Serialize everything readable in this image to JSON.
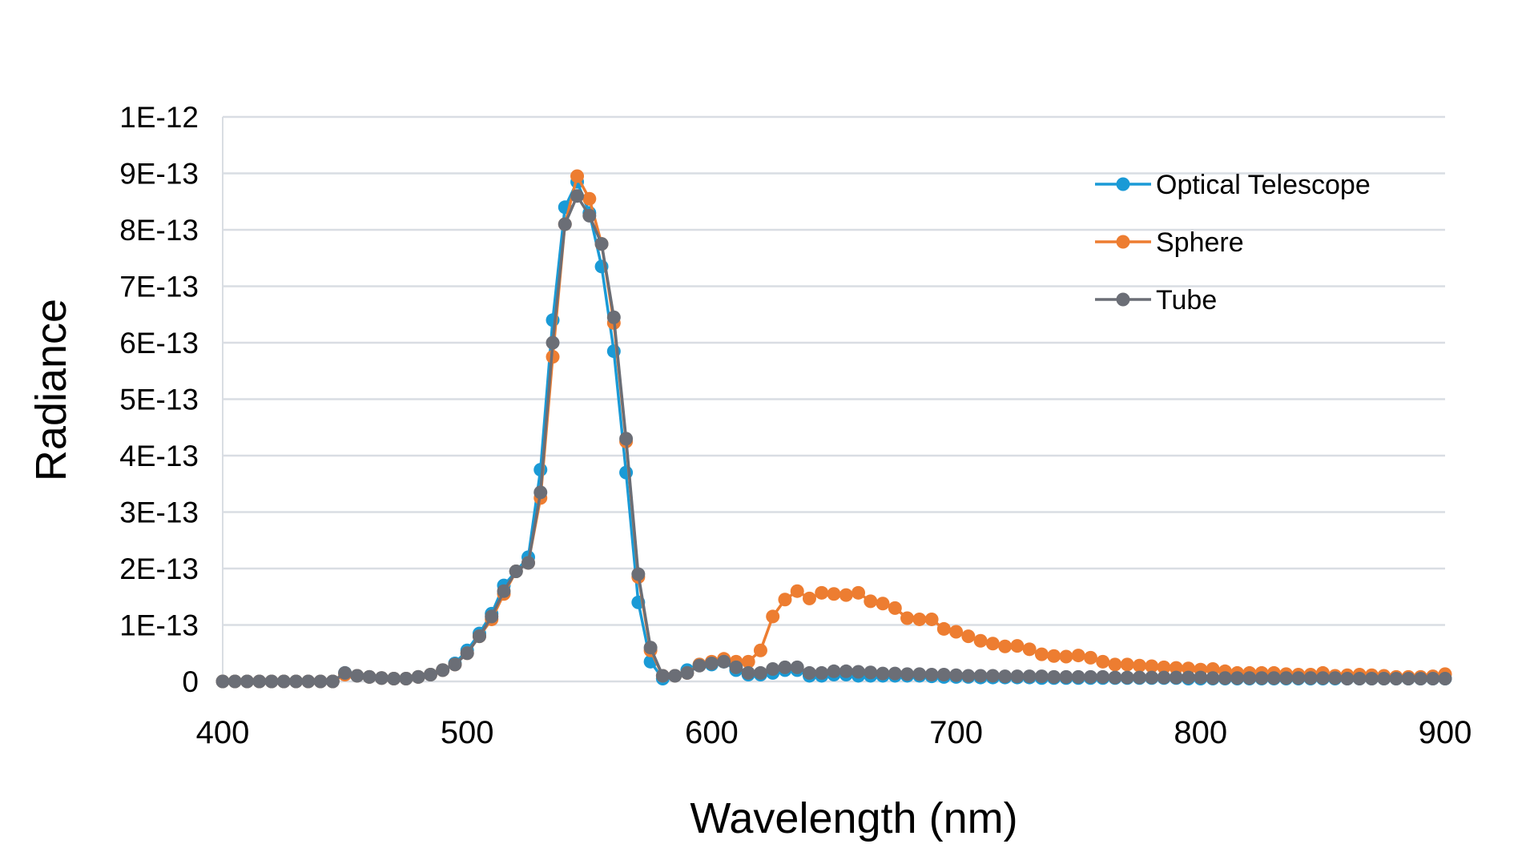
{
  "chart_data": {
    "type": "line",
    "title": "",
    "xlabel": "Wavelength (nm)",
    "ylabel": "Radiance",
    "xlim": [
      400,
      900
    ],
    "ylim": [
      0,
      1e-12
    ],
    "xticks": [
      400,
      500,
      600,
      700,
      800,
      900
    ],
    "xtick_labels": [
      "400",
      "500",
      "600",
      "700",
      "800",
      "900"
    ],
    "yticks": [
      0,
      1e-13,
      2e-13,
      3e-13,
      4e-13,
      5e-13,
      6e-13,
      7e-13,
      8e-13,
      9e-13,
      1e-12
    ],
    "ytick_labels": [
      "0",
      "1E-13",
      "2E-13",
      "3E-13",
      "4E-13",
      "5E-13",
      "6E-13",
      "7E-13",
      "8E-13",
      "9E-13",
      "1E-12"
    ],
    "grid": "horizontal",
    "legend_position": "top-right",
    "x_start": 400,
    "x_step": 5,
    "value_scale": 1e-13,
    "series": [
      {
        "name": "Optical Telescope",
        "color": "#1a9ad6",
        "values": [
          0,
          0,
          0,
          0,
          0,
          0,
          0,
          0,
          0,
          0,
          0.15,
          0.1,
          0.08,
          0.06,
          0.05,
          0.05,
          0.08,
          0.12,
          0.2,
          0.32,
          0.55,
          0.85,
          1.2,
          1.7,
          1.95,
          2.2,
          3.75,
          6.4,
          8.4,
          8.85,
          8.3,
          7.35,
          5.85,
          3.7,
          1.4,
          0.35,
          0.05,
          0.1,
          0.2,
          0.3,
          0.3,
          0.35,
          0.2,
          0.12,
          0.12,
          0.15,
          0.2,
          0.2,
          0.1,
          0.1,
          0.12,
          0.12,
          0.1,
          0.1,
          0.1,
          0.1,
          0.1,
          0.1,
          0.09,
          0.08,
          0.08,
          0.08,
          0.07,
          0.07,
          0.07,
          0.07,
          0.07,
          0.06,
          0.06,
          0.06,
          0.06,
          0.06,
          0.06,
          0.06,
          0.06,
          0.06,
          0.06,
          0.06,
          0.06,
          0.05,
          0.05,
          0.05,
          0.05,
          0.05,
          0.05,
          0.05,
          0.05,
          0.05,
          0.05,
          0.05,
          0.05,
          0.05,
          0.05,
          0.05,
          0.05,
          0.05,
          0.05,
          0.05,
          0.05,
          0.05,
          0.05
        ]
      },
      {
        "name": "Sphere",
        "color": "#ed7d31",
        "values": [
          0,
          0,
          0,
          0,
          0,
          0,
          0,
          0,
          0,
          0,
          0.12,
          0.1,
          0.08,
          0.06,
          0.05,
          0.05,
          0.08,
          0.12,
          0.2,
          0.3,
          0.5,
          0.8,
          1.1,
          1.55,
          1.95,
          2.1,
          3.25,
          5.75,
          8.1,
          8.95,
          8.55,
          7.75,
          6.35,
          4.25,
          1.85,
          0.55,
          0.1,
          0.1,
          0.15,
          0.3,
          0.35,
          0.4,
          0.35,
          0.35,
          0.55,
          1.15,
          1.45,
          1.6,
          1.47,
          1.57,
          1.55,
          1.53,
          1.57,
          1.42,
          1.38,
          1.3,
          1.12,
          1.1,
          1.1,
          0.93,
          0.88,
          0.8,
          0.72,
          0.67,
          0.62,
          0.63,
          0.57,
          0.48,
          0.45,
          0.44,
          0.46,
          0.42,
          0.35,
          0.3,
          0.3,
          0.28,
          0.27,
          0.25,
          0.24,
          0.23,
          0.21,
          0.22,
          0.18,
          0.15,
          0.15,
          0.15,
          0.15,
          0.13,
          0.12,
          0.12,
          0.15,
          0.1,
          0.11,
          0.12,
          0.11,
          0.1,
          0.08,
          0.08,
          0.08,
          0.09,
          0.13
        ]
      },
      {
        "name": "Tube",
        "color": "#6b6e76",
        "values": [
          0,
          0,
          0,
          0,
          0,
          0,
          0,
          0,
          0,
          0,
          0.15,
          0.1,
          0.08,
          0.06,
          0.05,
          0.05,
          0.08,
          0.12,
          0.2,
          0.3,
          0.5,
          0.8,
          1.15,
          1.6,
          1.95,
          2.1,
          3.35,
          6.0,
          8.1,
          8.6,
          8.25,
          7.75,
          6.45,
          4.3,
          1.9,
          0.6,
          0.1,
          0.1,
          0.15,
          0.28,
          0.32,
          0.35,
          0.25,
          0.15,
          0.15,
          0.22,
          0.25,
          0.25,
          0.15,
          0.15,
          0.18,
          0.18,
          0.17,
          0.16,
          0.14,
          0.14,
          0.13,
          0.13,
          0.12,
          0.12,
          0.11,
          0.1,
          0.1,
          0.1,
          0.09,
          0.09,
          0.09,
          0.09,
          0.08,
          0.08,
          0.08,
          0.08,
          0.08,
          0.07,
          0.07,
          0.07,
          0.07,
          0.07,
          0.07,
          0.07,
          0.07,
          0.06,
          0.06,
          0.06,
          0.06,
          0.06,
          0.06,
          0.06,
          0.06,
          0.06,
          0.06,
          0.06,
          0.05,
          0.05,
          0.05,
          0.05,
          0.05,
          0.05,
          0.05,
          0.05,
          0.05
        ]
      }
    ]
  }
}
